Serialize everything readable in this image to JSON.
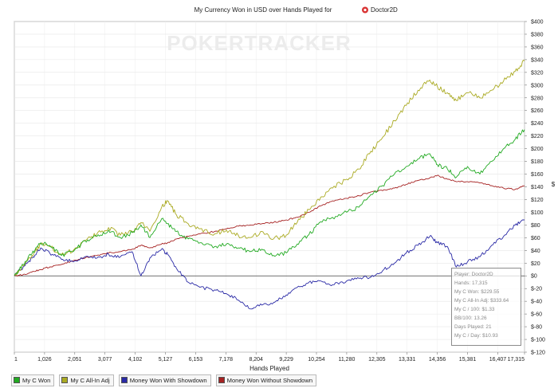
{
  "header": {
    "title": "My Currency Won in USD over Hands Played for",
    "player_name": "Doctor2D"
  },
  "watermark": "POKERTRACKER",
  "stats": {
    "player": "Player: Doctor2D",
    "hands": "Hands: 17,315",
    "won": "My C Won: $229.55",
    "allin": "My C All-In Adj: $333.64",
    "per100": "My C / 100: $1.33",
    "bb100": "BB/100: 13.26",
    "days": "Days Played: 21",
    "perday": "My C / Day: $10.93"
  },
  "colors": {
    "won": "#22aa22",
    "allin": "#aaaa22",
    "showdown": "#2a2aa6",
    "nonshowdown": "#a62222"
  },
  "chart_data": {
    "type": "line",
    "title": "My Currency Won in USD over Hands Played for Doctor2D",
    "xlabel": "Hands Played",
    "ylabel": "$",
    "xlim": [
      1,
      17315
    ],
    "ylim": [
      -120,
      400
    ],
    "x_ticks": [
      "1",
      "1,026",
      "2,051",
      "3,077",
      "4,102",
      "5,127",
      "6,153",
      "7,178",
      "8,204",
      "9,229",
      "10,254",
      "11,280",
      "12,305",
      "13,331",
      "14,356",
      "15,381",
      "16,407",
      "17,315"
    ],
    "x_tick_values": [
      1,
      1026,
      2051,
      3077,
      4102,
      5127,
      6153,
      7178,
      8204,
      9229,
      10254,
      11280,
      12305,
      13331,
      14356,
      15381,
      16407,
      17315
    ],
    "y_ticks": [
      "$400",
      "$380",
      "$360",
      "$340",
      "$320",
      "$300",
      "$280",
      "$260",
      "$240",
      "$220",
      "$200",
      "$180",
      "$160",
      "$140",
      "$120",
      "$100",
      "$80",
      "$60",
      "$40",
      "$20",
      "$0",
      "$-20",
      "$-40",
      "$-60",
      "$-80",
      "$-100",
      "$-120"
    ],
    "y_tick_values": [
      400,
      380,
      360,
      340,
      320,
      300,
      280,
      260,
      240,
      220,
      200,
      180,
      160,
      140,
      120,
      100,
      80,
      60,
      40,
      20,
      0,
      -20,
      -40,
      -60,
      -80,
      -100,
      -120
    ],
    "legend_position": "bottom",
    "series": [
      {
        "name": "My C Won",
        "color": "#22aa22",
        "x": [
          1,
          300,
          600,
          900,
          1200,
          1600,
          2000,
          2400,
          2800,
          3200,
          3600,
          4000,
          4300,
          4600,
          5000,
          5200,
          5500,
          5900,
          6300,
          6800,
          7200,
          7600,
          8000,
          8400,
          8800,
          9229,
          9600,
          10000,
          10400,
          10800,
          11280,
          11700,
          12100,
          12500,
          12900,
          13300,
          13700,
          14100,
          14356,
          14700,
          15000,
          15381,
          15800,
          16200,
          16600,
          17000,
          17315
        ],
        "y": [
          0,
          18,
          35,
          52,
          48,
          32,
          38,
          55,
          62,
          72,
          60,
          68,
          80,
          60,
          90,
          82,
          70,
          58,
          52,
          46,
          50,
          44,
          38,
          42,
          32,
          36,
          50,
          65,
          85,
          92,
          100,
          108,
          128,
          142,
          160,
          172,
          184,
          192,
          175,
          168,
          155,
          172,
          160,
          180,
          200,
          215,
          230
        ]
      },
      {
        "name": "My C All-In Adj",
        "color": "#aaaa22",
        "x": [
          1,
          300,
          600,
          900,
          1200,
          1600,
          2000,
          2400,
          2800,
          3200,
          3600,
          4000,
          4300,
          4600,
          5000,
          5200,
          5500,
          5900,
          6300,
          6800,
          7200,
          7600,
          8000,
          8400,
          8800,
          9229,
          9600,
          10000,
          10400,
          10800,
          11280,
          11700,
          12100,
          12500,
          12900,
          13300,
          13700,
          14100,
          14356,
          14700,
          15000,
          15381,
          15800,
          16200,
          16600,
          17000,
          17315
        ],
        "y": [
          0,
          16,
          32,
          50,
          46,
          34,
          40,
          56,
          66,
          76,
          64,
          70,
          84,
          70,
          108,
          118,
          96,
          82,
          74,
          66,
          72,
          64,
          60,
          70,
          58,
          64,
          84,
          104,
          124,
          138,
          152,
          168,
          196,
          218,
          244,
          268,
          292,
          308,
          298,
          288,
          276,
          288,
          280,
          292,
          306,
          322,
          338
        ]
      },
      {
        "name": "Money Won With Showdown",
        "color": "#2a2aa6",
        "x": [
          1,
          300,
          600,
          900,
          1200,
          1600,
          2000,
          2400,
          2800,
          3200,
          3600,
          4000,
          4300,
          4600,
          5000,
          5200,
          5500,
          5900,
          6300,
          6800,
          7200,
          7600,
          8000,
          8400,
          8800,
          9229,
          9600,
          10000,
          10400,
          10800,
          11280,
          11700,
          12100,
          12500,
          12900,
          13300,
          13700,
          14100,
          14356,
          14700,
          15000,
          15381,
          15800,
          16200,
          16600,
          17000,
          17315
        ],
        "y": [
          0,
          14,
          28,
          44,
          36,
          26,
          22,
          30,
          28,
          34,
          30,
          38,
          0,
          28,
          42,
          34,
          12,
          -10,
          -18,
          -22,
          -28,
          -38,
          -52,
          -46,
          -42,
          -30,
          -18,
          -10,
          -8,
          -14,
          -8,
          -4,
          -2,
          8,
          20,
          36,
          48,
          62,
          52,
          46,
          14,
          22,
          30,
          48,
          62,
          80,
          88
        ]
      },
      {
        "name": "Money Won Without Showdown",
        "color": "#a62222",
        "x": [
          1,
          300,
          600,
          900,
          1200,
          1600,
          2000,
          2400,
          2800,
          3200,
          3600,
          4000,
          4300,
          4600,
          5000,
          5200,
          5500,
          5900,
          6300,
          6800,
          7200,
          7600,
          8000,
          8400,
          8800,
          9229,
          9600,
          10000,
          10400,
          10800,
          11280,
          11700,
          12100,
          12500,
          12900,
          13300,
          13700,
          14100,
          14356,
          14700,
          15000,
          15381,
          15800,
          16200,
          16600,
          17000,
          17315
        ],
        "y": [
          0,
          2,
          6,
          10,
          14,
          18,
          24,
          28,
          32,
          36,
          38,
          42,
          48,
          44,
          50,
          52,
          58,
          62,
          66,
          70,
          74,
          78,
          80,
          82,
          84,
          88,
          92,
          100,
          110,
          118,
          122,
          126,
          132,
          134,
          138,
          144,
          150,
          154,
          158,
          152,
          148,
          148,
          146,
          142,
          138,
          136,
          142
        ]
      }
    ]
  }
}
